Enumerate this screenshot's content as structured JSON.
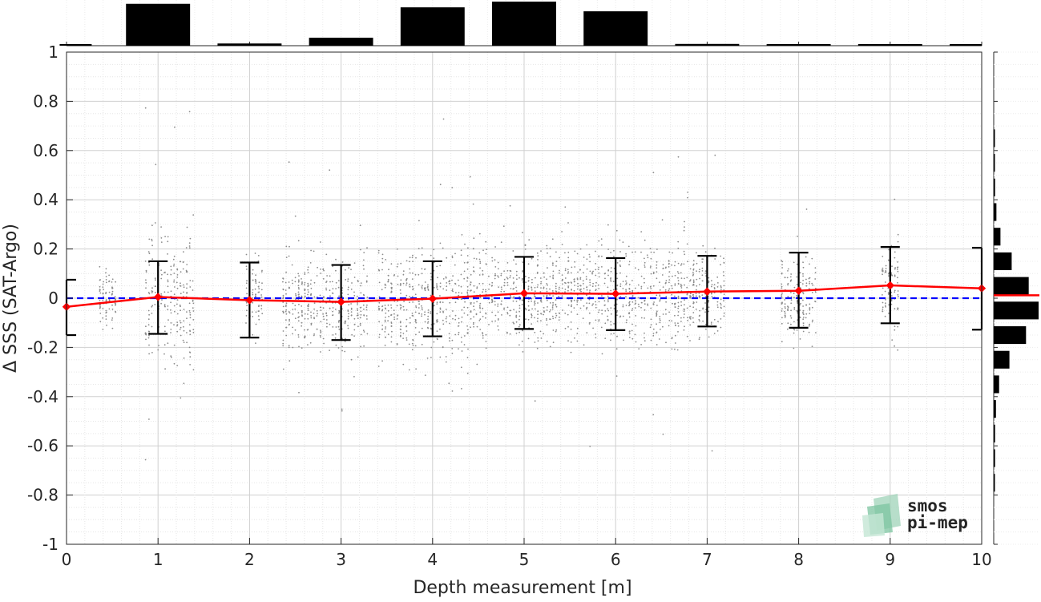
{
  "chart_data": {
    "type": "scatter",
    "xlabel": "Depth measurement [m]",
    "ylabel": "Δ SSS (SAT-Argo)",
    "xlim": [
      0,
      10
    ],
    "ylim": [
      -1,
      1
    ],
    "x_ticks": [
      "0",
      "1",
      "2",
      "3",
      "4",
      "5",
      "6",
      "7",
      "8",
      "9",
      "10"
    ],
    "y_ticks": [
      "-1",
      "-0.8",
      "-0.6",
      "-0.4",
      "-0.2",
      "0",
      "0.2",
      "0.4",
      "0.6",
      "0.8",
      "1"
    ],
    "grid": true,
    "minor_grid": true,
    "zero_line": {
      "y": 0,
      "color": "#0000ff",
      "style": "dashed"
    },
    "mean_series": {
      "color": "#ff0000",
      "marker": "diamond",
      "points": [
        {
          "x": 0,
          "y": -0.035,
          "lower": -0.15,
          "upper": 0.075
        },
        {
          "x": 1,
          "y": 0.005,
          "lower": -0.145,
          "upper": 0.15
        },
        {
          "x": 2,
          "y": -0.008,
          "lower": -0.16,
          "upper": 0.145
        },
        {
          "x": 3,
          "y": -0.015,
          "lower": -0.17,
          "upper": 0.135
        },
        {
          "x": 4,
          "y": -0.002,
          "lower": -0.155,
          "upper": 0.15
        },
        {
          "x": 5,
          "y": 0.02,
          "lower": -0.125,
          "upper": 0.168
        },
        {
          "x": 6,
          "y": 0.018,
          "lower": -0.13,
          "upper": 0.163
        },
        {
          "x": 7,
          "y": 0.027,
          "lower": -0.115,
          "upper": 0.172
        },
        {
          "x": 8,
          "y": 0.03,
          "lower": -0.12,
          "upper": 0.185
        },
        {
          "x": 9,
          "y": 0.052,
          "lower": -0.102,
          "upper": 0.208
        },
        {
          "x": 10,
          "y": 0.04,
          "lower": -0.128,
          "upper": 0.205
        }
      ]
    },
    "scatter_color": "#8c8c8c",
    "scatter_clusters": [
      {
        "x_from": 0.35,
        "x_to": 0.55,
        "y_mean": 0.0,
        "y_spread": 0.1
      },
      {
        "x_from": 0.85,
        "x_to": 1.4,
        "y_mean": 0.0,
        "y_spread": 0.25
      },
      {
        "x_from": 1.95,
        "x_to": 2.15,
        "y_mean": 0.0,
        "y_spread": 0.13
      },
      {
        "x_from": 2.35,
        "x_to": 3.3,
        "y_mean": -0.02,
        "y_spread": 0.18
      },
      {
        "x_from": 3.4,
        "x_to": 4.4,
        "y_mean": -0.02,
        "y_spread": 0.2
      },
      {
        "x_from": 4.4,
        "x_to": 6.8,
        "y_mean": 0.02,
        "y_spread": 0.18
      },
      {
        "x_from": 6.8,
        "x_to": 7.2,
        "y_mean": 0.02,
        "y_spread": 0.15
      },
      {
        "x_from": 7.8,
        "x_to": 8.2,
        "y_mean": 0.0,
        "y_spread": 0.15
      },
      {
        "x_from": 8.9,
        "x_to": 9.1,
        "y_mean": 0.05,
        "y_spread": 0.15
      }
    ],
    "top_histogram": {
      "bin_centers": [
        0.1,
        1,
        2,
        3,
        4,
        5,
        6,
        7,
        8,
        9,
        10
      ],
      "relative_heights": [
        0.03,
        0.95,
        0.05,
        0.18,
        0.87,
        1.0,
        0.78,
        0.04,
        0.02,
        0.02,
        0.02
      ]
    },
    "right_histogram": {
      "bin_centers": [
        -0.75,
        -0.65,
        -0.55,
        -0.45,
        -0.35,
        -0.25,
        -0.15,
        -0.05,
        0.05,
        0.15,
        0.25,
        0.35,
        0.45,
        0.55,
        0.65,
        0.75
      ],
      "relative_widths": [
        0.02,
        0.03,
        0.03,
        0.05,
        0.12,
        0.35,
        0.72,
        1.0,
        0.78,
        0.4,
        0.15,
        0.06,
        0.03,
        0.02,
        0.02,
        0.0
      ],
      "mean_line_color": "#ff0000"
    }
  },
  "logo": {
    "line1": "smos",
    "line2": "pi-mep"
  }
}
